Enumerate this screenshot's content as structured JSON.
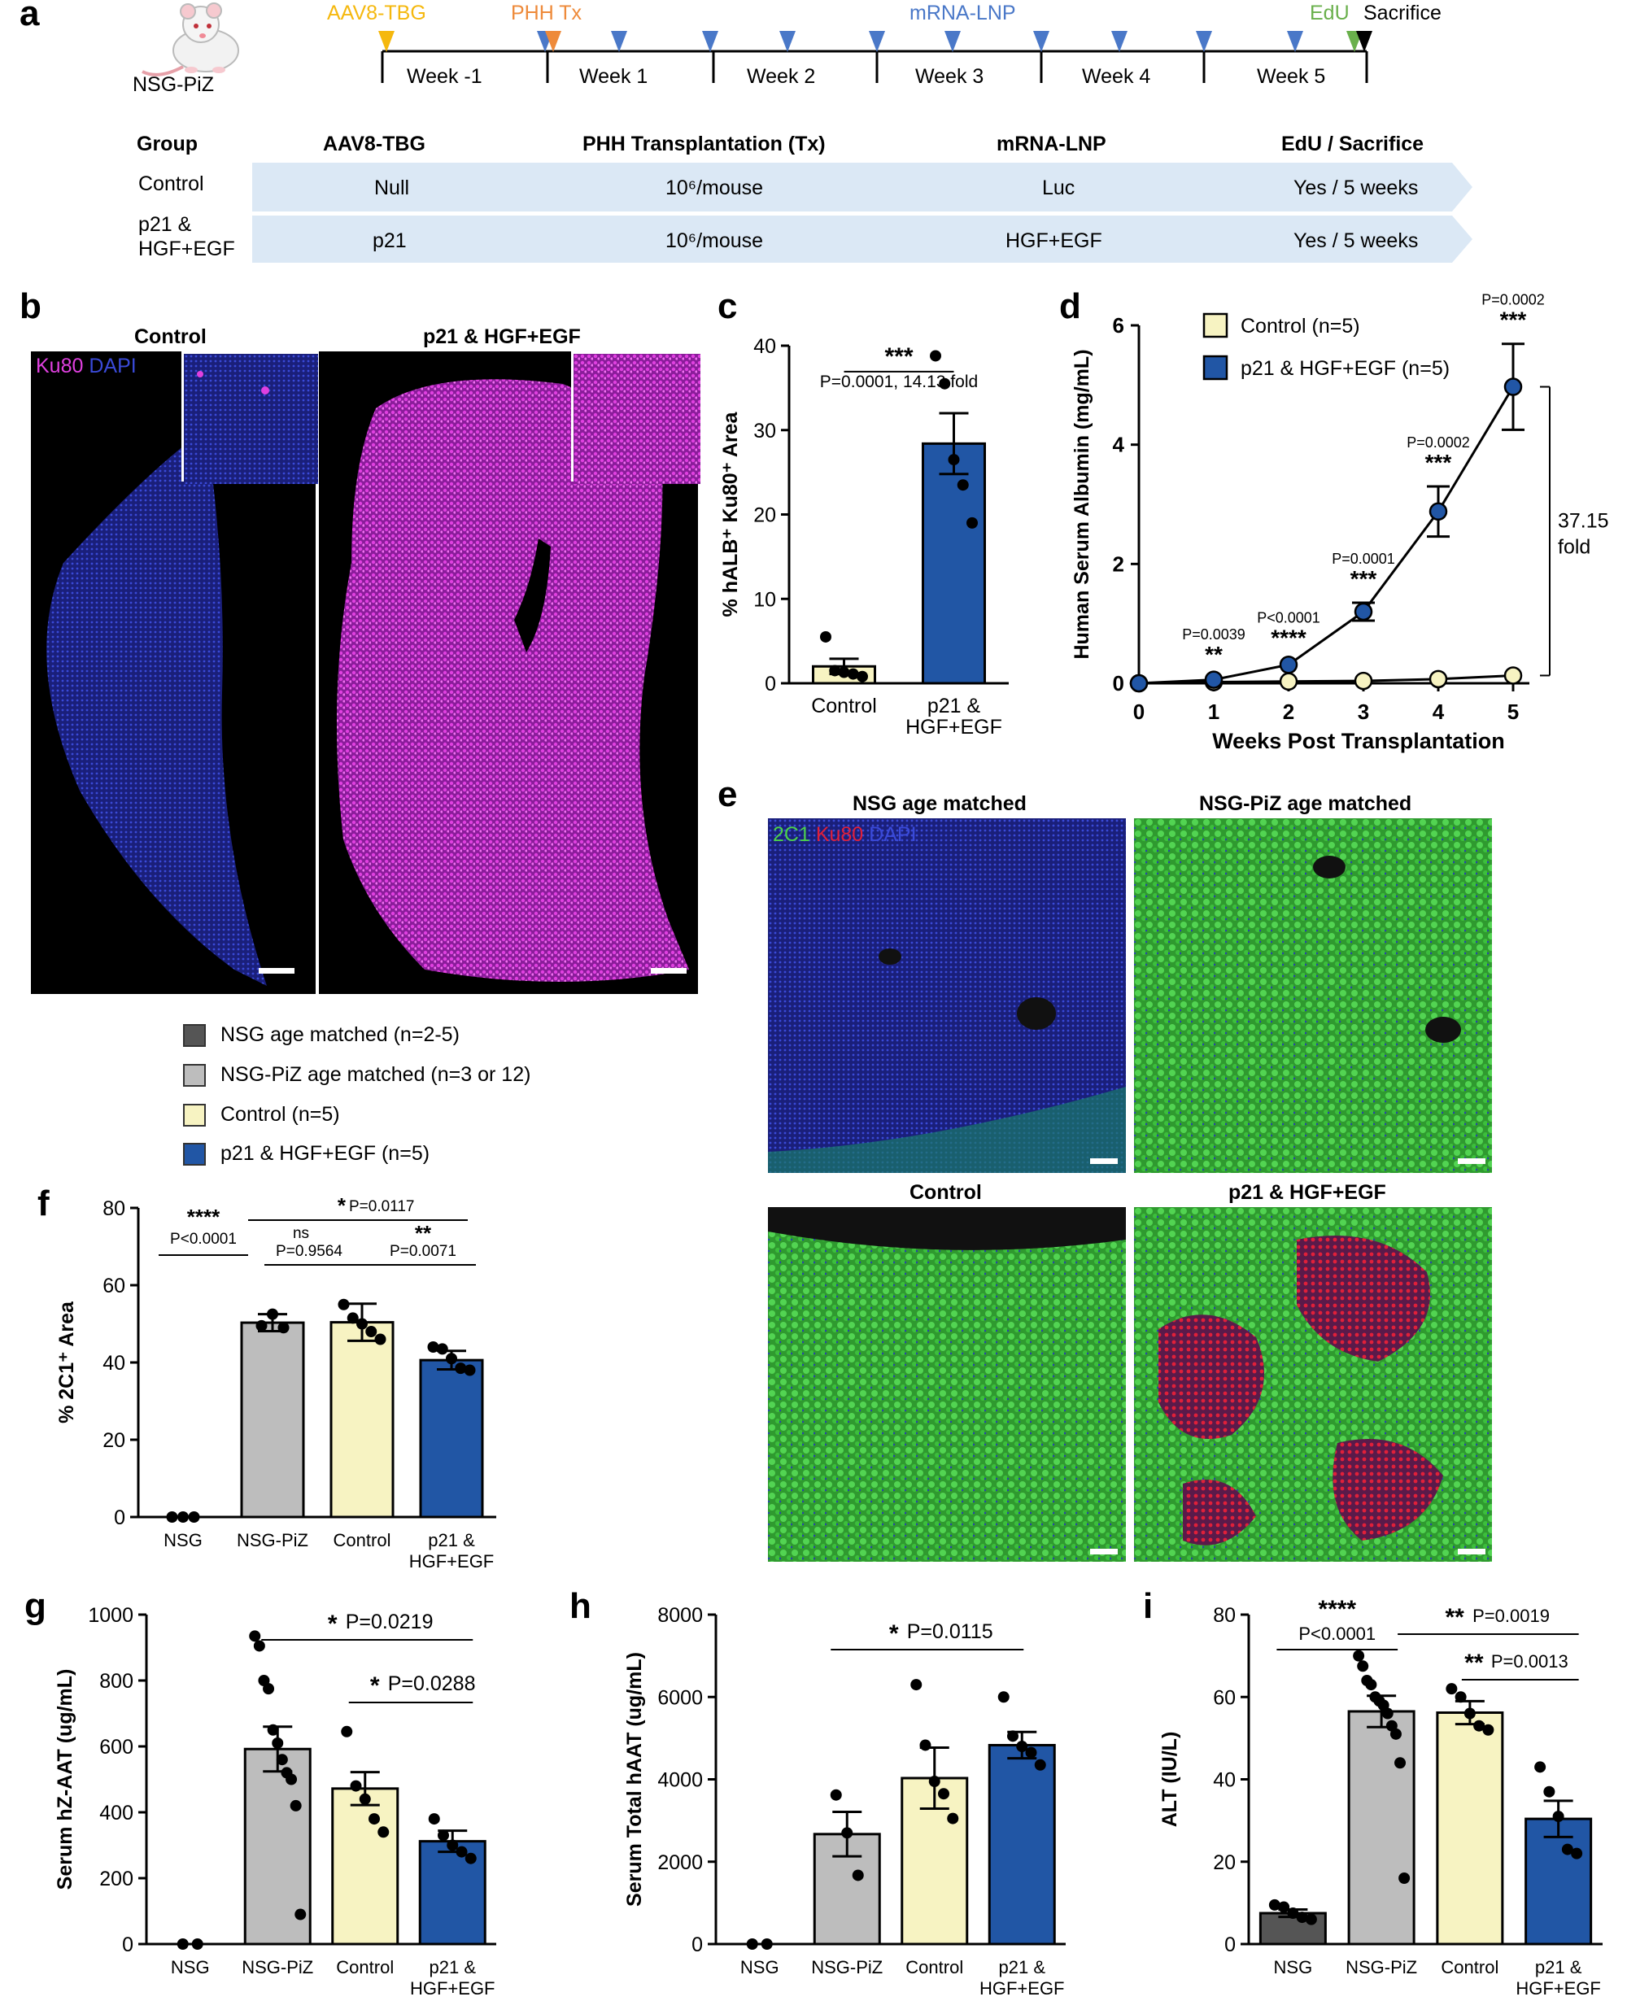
{
  "panel_labels": {
    "a": "a",
    "b": "b",
    "c": "c",
    "d": "d",
    "e": "e",
    "f": "f",
    "g": "g",
    "h": "h",
    "i": "i"
  },
  "panel_a": {
    "mouse_label": "NSG-PiZ",
    "timeline_labels": {
      "aav": "AAV8-TBG",
      "phh": "PHH Tx",
      "mrna": "mRNA-LNP",
      "edu": "EdU",
      "sac": "Sacrifice"
    },
    "weeks": [
      "Week -1",
      "Week 1",
      "Week 2",
      "Week 3",
      "Week 4",
      "Week 5"
    ],
    "colors": {
      "aav": "#f5b80e",
      "phh": "#ee8a3a",
      "mrna": "#4a78c8",
      "edu": "#6ab04c",
      "sac": "#000000",
      "band": "#dbe8f5"
    },
    "table": {
      "headers": [
        "Group",
        "AAV8-TBG",
        "PHH Transplantation (Tx)",
        "mRNA-LNP",
        "EdU / Sacrifice"
      ],
      "rows": [
        {
          "group": "Control",
          "aav": "Null",
          "phh": "10⁶/mouse",
          "mrna": "Luc",
          "edu": "Yes / 5 weeks"
        },
        {
          "group_line1": "p21 &",
          "group_line2": "HGF+EGF",
          "aav": "p21",
          "phh": "10⁶/mouse",
          "mrna": "HGF+EGF",
          "edu": "Yes / 5 weeks"
        }
      ]
    }
  },
  "panel_b": {
    "titles": [
      "Control",
      "p21 & HGF+EGF"
    ],
    "stain_ku80": "Ku80",
    "stain_dapi": "DAPI",
    "colors": {
      "ku80": "#e040e0",
      "dapi": "#3a4ad8"
    }
  },
  "panel_e": {
    "titles": [
      "NSG age matched",
      "NSG-PiZ age matched",
      "Control",
      "p21 & HGF+EGF"
    ],
    "stain_2c1": "2C1",
    "stain_ku80": "Ku80",
    "stain_dapi": "DAPI",
    "colors": {
      "2c1": "#4cd14c",
      "ku80": "#e0203a",
      "dapi": "#3a4ad8"
    }
  },
  "legend_f": {
    "items": [
      {
        "label": "NSG age matched (n=2-5)",
        "color": "#555555"
      },
      {
        "label": "NSG-PiZ age matched (n=3 or 12)",
        "color": "#bdbdbd"
      },
      {
        "label": "Control (n=5)",
        "color": "#f7f3c2"
      },
      {
        "label": "p21 & HGF+EGF (n=5)",
        "color": "#2156a5"
      }
    ]
  },
  "chart_data": [
    {
      "id": "c",
      "type": "bar",
      "ylabel": "% hALB⁺ Ku80⁺ Area",
      "ylim": [
        0,
        40
      ],
      "yticks": [
        0,
        10,
        20,
        30,
        40
      ],
      "categories": [
        "Control",
        "p21 &\nHGF+EGF"
      ],
      "values": [
        2.0,
        28.4
      ],
      "errors": [
        0.9,
        3.6
      ],
      "colors": [
        "#f7f3c2",
        "#2156a5"
      ],
      "points": [
        [
          5.5,
          1.5,
          1.3,
          1.1,
          0.8
        ],
        [
          38.8,
          35.5,
          26.5,
          23.5,
          19.0
        ]
      ],
      "annotations": [
        {
          "text": "***",
          "text2": "P=0.0001, 14.13 fold"
        }
      ]
    },
    {
      "id": "d",
      "type": "line",
      "xlabel": "Weeks Post Transplantation",
      "ylabel": "Human Serum Albumin (mg/mL)",
      "x": [
        0,
        1,
        2,
        3,
        4,
        5
      ],
      "ylim": [
        0,
        6
      ],
      "yticks": [
        0,
        2,
        4,
        6
      ],
      "series": [
        {
          "name": "Control (n=5)",
          "values": [
            0.0,
            0.02,
            0.03,
            0.04,
            0.07,
            0.13
          ],
          "errors": [
            0,
            0.01,
            0.01,
            0.01,
            0.02,
            0.03
          ],
          "color": "#f7f3c2"
        },
        {
          "name": "p21 & HGF+EGF (n=5)",
          "values": [
            0.0,
            0.06,
            0.31,
            1.2,
            2.88,
            4.97
          ],
          "errors": [
            0,
            0.02,
            0.05,
            0.15,
            0.42,
            0.72
          ],
          "color": "#2156a5"
        }
      ],
      "annotations": [
        {
          "x": 1,
          "stars": "**",
          "p": "P=0.0039"
        },
        {
          "x": 2,
          "stars": "****",
          "p": "P<0.0001"
        },
        {
          "x": 3,
          "stars": "***",
          "p": "P=0.0001"
        },
        {
          "x": 4,
          "stars": "***",
          "p": "P=0.0002"
        },
        {
          "x": 5,
          "stars": "***",
          "p": "P=0.0002"
        }
      ],
      "fold_text": [
        "37.15",
        "fold"
      ]
    },
    {
      "id": "f",
      "type": "bar",
      "ylabel": "% 2C1⁺ Area",
      "ylim": [
        0,
        80
      ],
      "yticks": [
        0,
        20,
        40,
        60,
        80
      ],
      "categories": [
        "NSG",
        "NSG-PiZ",
        "Control",
        "p21 &\nHGF+EGF"
      ],
      "values": [
        0,
        50.3,
        50.4,
        40.6
      ],
      "errors": [
        0,
        2.2,
        4.8,
        2.4
      ],
      "colors": [
        "#555555",
        "#bdbdbd",
        "#f7f3c2",
        "#2156a5"
      ],
      "points": [
        [
          0,
          0,
          0
        ],
        [
          49.5,
          52.5,
          49
        ],
        [
          55,
          51.5,
          50,
          48,
          46
        ],
        [
          44,
          43.5,
          41,
          38.5,
          38
        ]
      ],
      "annotations": [
        {
          "stars": "****",
          "p": "P<0.0001"
        },
        {
          "stars": "*",
          "p": "P=0.0117"
        },
        {
          "stars": "ns",
          "p": "P=0.9564"
        },
        {
          "stars": "**",
          "p": "P=0.0071"
        }
      ]
    },
    {
      "id": "g",
      "type": "bar",
      "ylabel": "Serum hZ-AAT (ug/mL)",
      "ylim": [
        0,
        1000
      ],
      "yticks": [
        0,
        200,
        400,
        600,
        800,
        1000
      ],
      "categories": [
        "NSG",
        "NSG-PiZ",
        "Control",
        "p21 &\nHGF+EGF"
      ],
      "values": [
        0,
        592,
        472,
        312
      ],
      "errors": [
        0,
        68,
        50,
        32
      ],
      "colors": [
        "#555555",
        "#bdbdbd",
        "#f7f3c2",
        "#2156a5"
      ],
      "points": [
        [
          0,
          0
        ],
        [
          935,
          905,
          800,
          775,
          650,
          610,
          560,
          520,
          500,
          420,
          90
        ],
        [
          645,
          480,
          440,
          380,
          340
        ],
        [
          380,
          330,
          300,
          280,
          260
        ]
      ],
      "annotations": [
        {
          "stars": "*",
          "p": "P=0.0219"
        },
        {
          "stars": "*",
          "p": "P=0.0288"
        }
      ]
    },
    {
      "id": "h",
      "type": "bar",
      "ylabel": "Serum Total hAAT (ug/mL)",
      "ylim": [
        0,
        8000
      ],
      "yticks": [
        0,
        2000,
        4000,
        6000,
        8000
      ],
      "categories": [
        "NSG",
        "NSG-PiZ",
        "Control",
        "p21 &\nHGF+EGF"
      ],
      "values": [
        0,
        2670,
        4030,
        4830
      ],
      "errors": [
        0,
        540,
        740,
        320
      ],
      "colors": [
        "#555555",
        "#bdbdbd",
        "#f7f3c2",
        "#2156a5"
      ],
      "points": [
        [
          0,
          0
        ],
        [
          3620,
          2700,
          1670
        ],
        [
          6300,
          4830,
          3950,
          3650,
          3050
        ],
        [
          6000,
          5050,
          4800,
          4650,
          4350
        ]
      ],
      "annotations": [
        {
          "stars": "*",
          "p": "P=0.0115"
        }
      ]
    },
    {
      "id": "i",
      "type": "bar",
      "ylabel": "ALT (IU/L)",
      "ylim": [
        0,
        80
      ],
      "yticks": [
        0,
        20,
        40,
        60,
        80
      ],
      "categories": [
        "NSG",
        "NSG-PiZ",
        "Control",
        "p21 &\nHGF+EGF"
      ],
      "values": [
        7.5,
        56.5,
        56.2,
        30.4
      ],
      "errors": [
        0.9,
        3.8,
        2.8,
        4.4
      ],
      "colors": [
        "#555555",
        "#bdbdbd",
        "#f7f3c2",
        "#2156a5"
      ],
      "points": [
        [
          9.5,
          9,
          7.5,
          6.5,
          6
        ],
        [
          70,
          67.5,
          64,
          63,
          60,
          59,
          58,
          56,
          53,
          51,
          44,
          16
        ],
        [
          62,
          60,
          56,
          53,
          52
        ],
        [
          43,
          37,
          31,
          23,
          22
        ]
      ],
      "annotations": [
        {
          "stars": "****",
          "p": "P<0.0001"
        },
        {
          "stars": "**",
          "p": "P=0.0019"
        },
        {
          "stars": "**",
          "p": "P=0.0013"
        }
      ]
    }
  ]
}
